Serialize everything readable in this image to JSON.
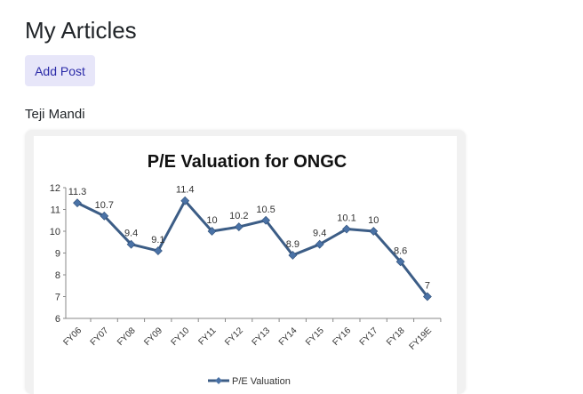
{
  "header": {
    "title": "My Articles"
  },
  "toolbar": {
    "add_post_label": "Add Post"
  },
  "article": {
    "author": "Teji Mandi"
  },
  "chart_data": {
    "type": "line",
    "title": "P/E Valuation for ONGC",
    "xlabel": "",
    "ylabel": "",
    "ylim": [
      6,
      12
    ],
    "yticks": [
      6,
      7,
      8,
      9,
      10,
      11,
      12
    ],
    "categories": [
      "FY06",
      "FY07",
      "FY08",
      "FY09",
      "FY10",
      "FY11",
      "FY12",
      "FY13",
      "FY14",
      "FY15",
      "FY16",
      "FY17",
      "FY18",
      "FY19E"
    ],
    "series": [
      {
        "name": "P/E Valuation",
        "values": [
          11.3,
          10.7,
          9.4,
          9.1,
          11.4,
          10,
          10.2,
          10.5,
          8.9,
          9.4,
          10.1,
          10,
          8.6,
          7
        ],
        "labels": [
          "11.3",
          "10.7",
          "9.4",
          "9.1",
          "11.4",
          "10",
          "10.2",
          "10.5",
          "8.9",
          "9.4",
          "10.1",
          "10",
          "8.6",
          "7"
        ]
      }
    ],
    "legend": "bottom",
    "grid": false,
    "line_color": "#3c5d86",
    "marker_color": "#4a72a6"
  }
}
